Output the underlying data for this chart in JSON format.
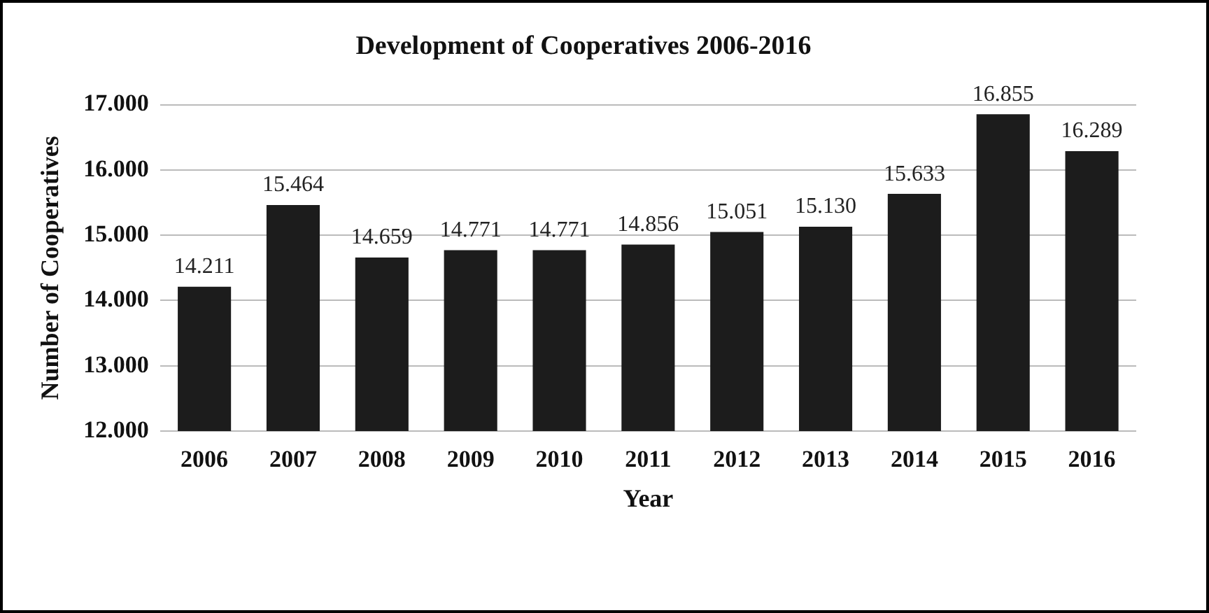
{
  "chart_data": {
    "type": "bar",
    "title": "Development of Cooperatives 2006-2016",
    "xlabel": "Year",
    "ylabel": "Number of Cooperatives",
    "categories": [
      "2006",
      "2007",
      "2008",
      "2009",
      "2010",
      "2011",
      "2012",
      "2013",
      "2014",
      "2015",
      "2016"
    ],
    "values": [
      14211,
      15464,
      14659,
      14771,
      14771,
      14856,
      15051,
      15130,
      15633,
      16855,
      16289
    ],
    "value_labels": [
      "14.211",
      "15.464",
      "14.659",
      "14.771",
      "14.771",
      "14.856",
      "15.051",
      "15.130",
      "15.633",
      "16.855",
      "16.289"
    ],
    "color": "#1c1c1c",
    "ylim": [
      12000,
      17000
    ],
    "yticks": [
      {
        "value": 12000,
        "label": "12.000"
      },
      {
        "value": 13000,
        "label": "13.000"
      },
      {
        "value": 14000,
        "label": "14.000"
      },
      {
        "value": 15000,
        "label": "15.000"
      },
      {
        "value": 16000,
        "label": "16.000"
      },
      {
        "value": 17000,
        "label": "17.000"
      }
    ],
    "grid": "y",
    "legend": false
  }
}
